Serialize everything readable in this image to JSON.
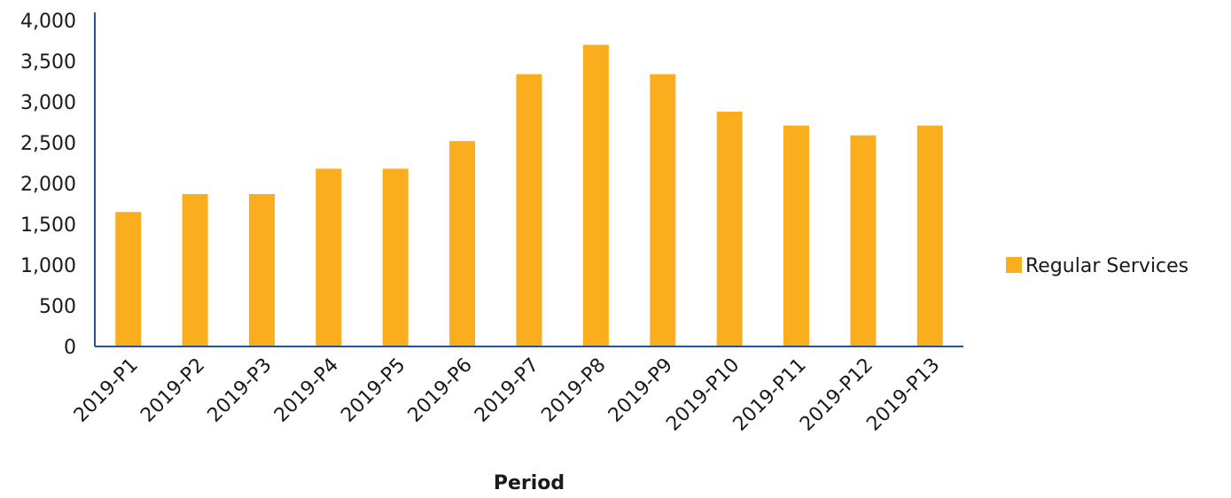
{
  "chart_data": {
    "type": "bar",
    "title": "",
    "xlabel": "Period",
    "ylabel": "",
    "ylim": [
      0,
      4000
    ],
    "yticks": [
      0,
      500,
      1000,
      1500,
      2000,
      2500,
      3000,
      3500,
      4000
    ],
    "ytick_labels": [
      "0",
      "500",
      "1,000",
      "1,500",
      "2,000",
      "2,500",
      "3,000",
      "3,500",
      "4,000"
    ],
    "categories": [
      "2019-P1",
      "2019-P2",
      "2019-P3",
      "2019-P4",
      "2019-P5",
      "2019-P6",
      "2019-P7",
      "2019-P8",
      "2019-P9",
      "2019-P10",
      "2019-P11",
      "2019-P12",
      "2019-P13"
    ],
    "series": [
      {
        "name": "Regular Services",
        "color": "#FAAE1E",
        "values": [
          1650,
          1870,
          1870,
          2180,
          2180,
          2520,
          3340,
          3700,
          3340,
          2880,
          2710,
          2590,
          2710
        ]
      }
    ],
    "grid": false,
    "legend_position": "right",
    "axis_color": "#2A5288"
  }
}
